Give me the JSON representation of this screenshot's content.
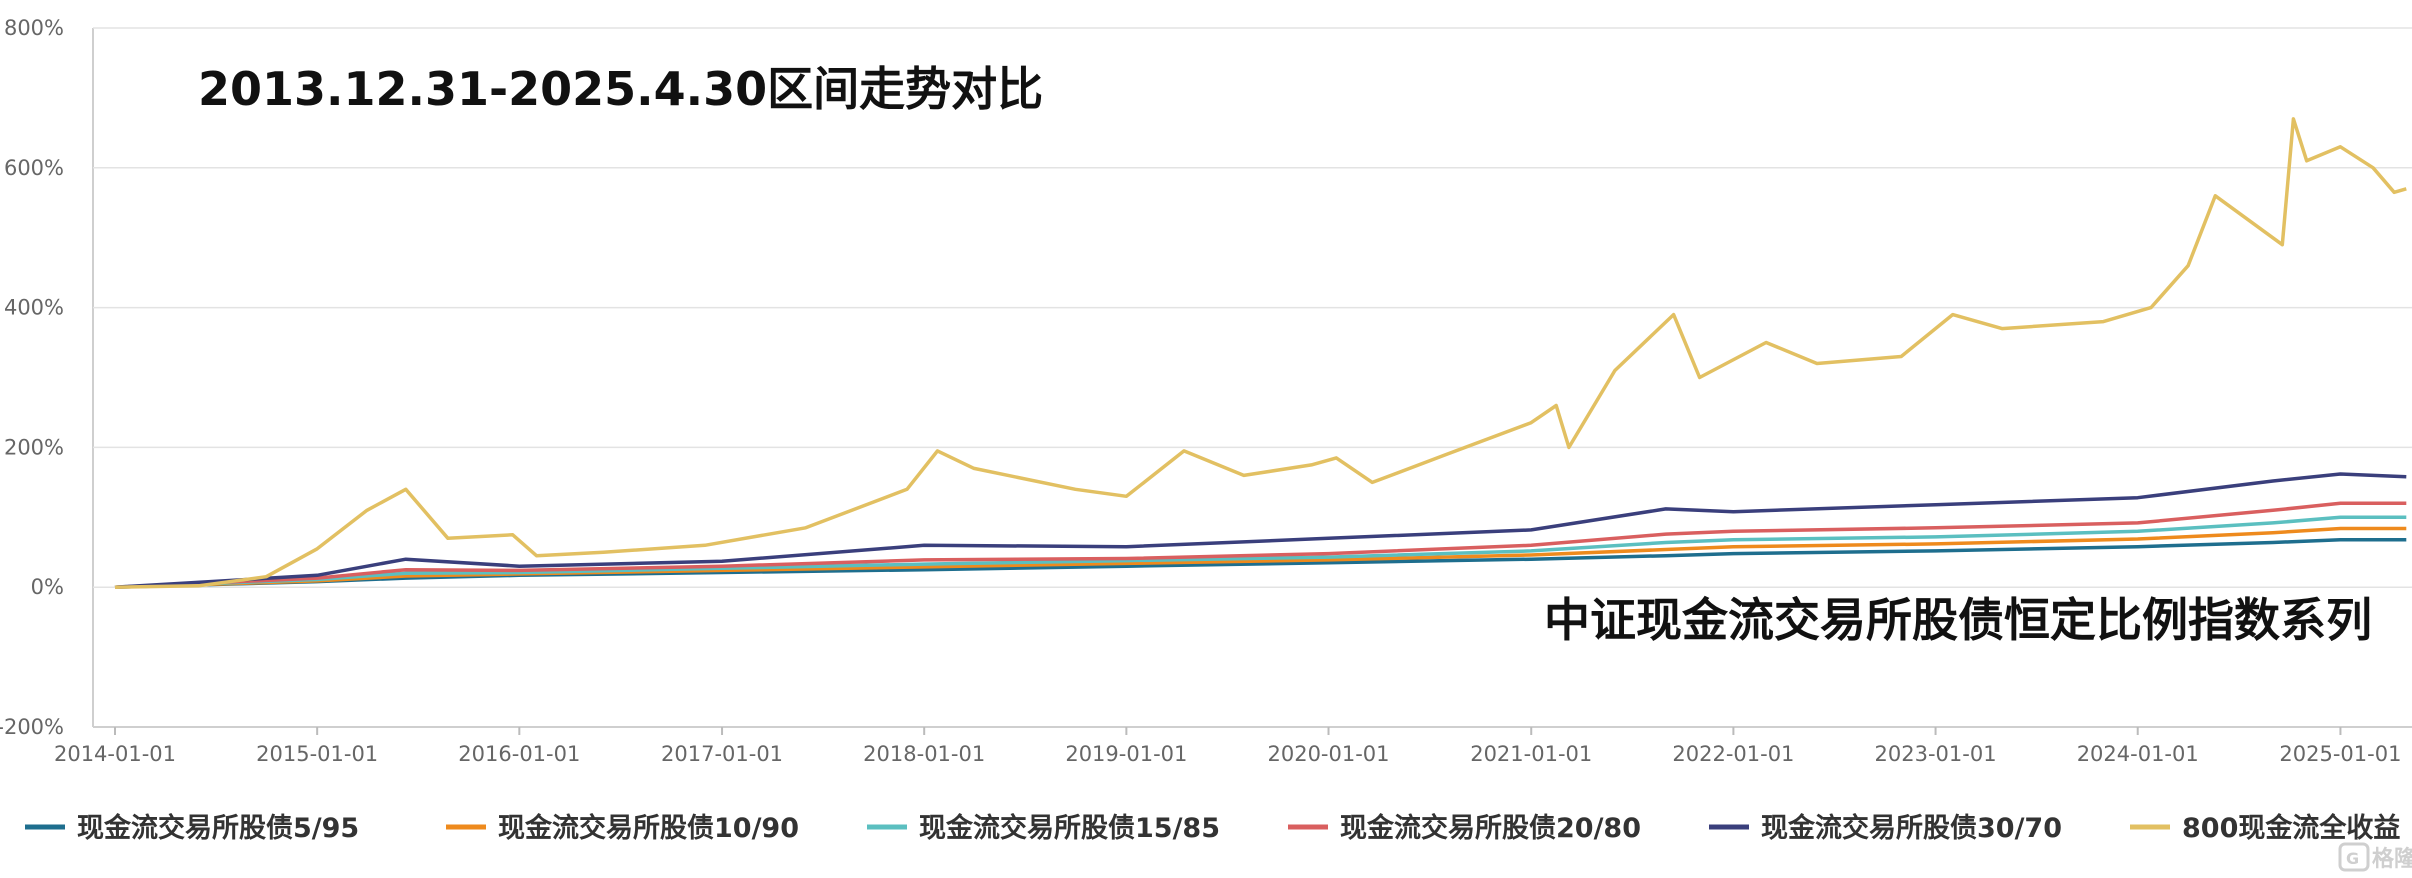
{
  "watermark": "格隆汇",
  "chart_data": {
    "type": "line",
    "title": "2013.12.31-2025.4.30区间走势对比",
    "subtitle": "中证现金流交易所股债恒定比例指数系列",
    "xlabel": "",
    "ylabel": "",
    "ylim": [
      -200,
      800
    ],
    "yticks": [
      "-200%",
      "0%",
      "200%",
      "400%",
      "600%",
      "800%"
    ],
    "ytick_values": [
      -200,
      0,
      200,
      400,
      600,
      800
    ],
    "xticks": [
      "2014-01-01",
      "2015-01-01",
      "2016-01-01",
      "2017-01-01",
      "2018-01-01",
      "2019-01-01",
      "2020-01-01",
      "2021-01-01",
      "2022-01-01",
      "2023-01-01",
      "2024-01-01",
      "2025-01-01"
    ],
    "grid": "horizontal",
    "legend_position": "bottom",
    "series": [
      {
        "name": "现金流交易所股债5/95",
        "color": "#1e6e8e",
        "x": [
          "2014-01-01",
          "2015-01-01",
          "2015-06-10",
          "2016-01-01",
          "2017-01-01",
          "2018-01-01",
          "2019-01-01",
          "2020-01-01",
          "2021-01-01",
          "2021-09-01",
          "2022-01-01",
          "2023-01-01",
          "2024-01-01",
          "2024-09-01",
          "2025-01-01",
          "2025-04-30"
        ],
        "values": [
          0,
          8,
          13,
          17,
          21,
          25,
          30,
          35,
          40,
          45,
          48,
          52,
          58,
          64,
          68,
          68
        ]
      },
      {
        "name": "现金流交易所股债10/90",
        "color": "#ee8a1d",
        "x": [
          "2014-01-01",
          "2015-01-01",
          "2015-06-10",
          "2016-01-01",
          "2017-01-01",
          "2018-01-01",
          "2019-01-01",
          "2020-01-01",
          "2021-01-01",
          "2021-09-01",
          "2022-01-01",
          "2023-01-01",
          "2024-01-01",
          "2024-09-01",
          "2025-01-01",
          "2025-04-30"
        ],
        "values": [
          0,
          9,
          16,
          19,
          24,
          29,
          34,
          39,
          46,
          54,
          58,
          62,
          69,
          78,
          84,
          84
        ]
      },
      {
        "name": "现金流交易所股债15/85",
        "color": "#5bbfc0",
        "x": [
          "2014-01-01",
          "2015-01-01",
          "2015-06-10",
          "2016-01-01",
          "2017-01-01",
          "2018-01-01",
          "2019-01-01",
          "2020-01-01",
          "2021-01-01",
          "2021-09-01",
          "2022-01-01",
          "2023-01-01",
          "2024-01-01",
          "2024-09-01",
          "2025-01-01",
          "2025-04-30"
        ],
        "values": [
          0,
          11,
          20,
          21,
          27,
          33,
          38,
          43,
          52,
          64,
          68,
          72,
          80,
          92,
          100,
          100
        ]
      },
      {
        "name": "现金流交易所股债20/80",
        "color": "#d95f5f",
        "x": [
          "2014-01-01",
          "2015-01-01",
          "2015-06-10",
          "2016-01-01",
          "2017-01-01",
          "2018-01-01",
          "2019-01-01",
          "2020-01-01",
          "2021-01-01",
          "2021-09-01",
          "2022-01-01",
          "2023-01-01",
          "2024-01-01",
          "2024-09-01",
          "2025-01-01",
          "2025-04-30"
        ],
        "values": [
          0,
          13,
          25,
          24,
          30,
          39,
          41,
          48,
          60,
          76,
          80,
          85,
          92,
          110,
          120,
          120
        ]
      },
      {
        "name": "现金流交易所股债30/70",
        "color": "#3a3f7c",
        "x": [
          "2014-01-01",
          "2015-01-01",
          "2015-06-10",
          "2016-01-01",
          "2017-01-01",
          "2018-01-01",
          "2019-01-01",
          "2020-01-01",
          "2021-01-01",
          "2021-09-01",
          "2022-01-01",
          "2023-01-01",
          "2024-01-01",
          "2024-09-01",
          "2025-01-01",
          "2025-04-30"
        ],
        "values": [
          0,
          17,
          40,
          30,
          37,
          60,
          58,
          70,
          82,
          112,
          108,
          118,
          128,
          152,
          162,
          158
        ]
      },
      {
        "name": "800现金流全收益",
        "color": "#e2c062",
        "x": [
          "2014-01-01",
          "2014-06-01",
          "2014-10-01",
          "2015-01-01",
          "2015-04-01",
          "2015-06-10",
          "2015-08-25",
          "2015-12-20",
          "2016-02-01",
          "2016-06-01",
          "2016-12-01",
          "2017-06-01",
          "2017-12-01",
          "2018-01-25",
          "2018-04-01",
          "2018-10-01",
          "2019-01-01",
          "2019-04-15",
          "2019-08-01",
          "2019-12-01",
          "2020-01-15",
          "2020-03-20",
          "2020-08-01",
          "2020-12-31",
          "2021-02-15",
          "2021-03-10",
          "2021-06-01",
          "2021-09-15",
          "2021-11-01",
          "2022-03-01",
          "2022-06-01",
          "2022-10-31",
          "2023-02-01",
          "2023-05-01",
          "2023-10-31",
          "2024-01-25",
          "2024-04-01",
          "2024-05-20",
          "2024-09-18",
          "2024-10-08",
          "2024-11-01",
          "2025-01-01",
          "2025-03-01",
          "2025-04-08",
          "2025-04-30"
        ],
        "values": [
          0,
          2,
          15,
          55,
          110,
          140,
          70,
          75,
          45,
          50,
          60,
          85,
          140,
          195,
          170,
          140,
          130,
          195,
          160,
          175,
          185,
          150,
          190,
          235,
          260,
          200,
          310,
          390,
          300,
          350,
          320,
          330,
          390,
          370,
          380,
          400,
          460,
          560,
          490,
          670,
          610,
          630,
          600,
          565,
          570
        ]
      }
    ]
  }
}
